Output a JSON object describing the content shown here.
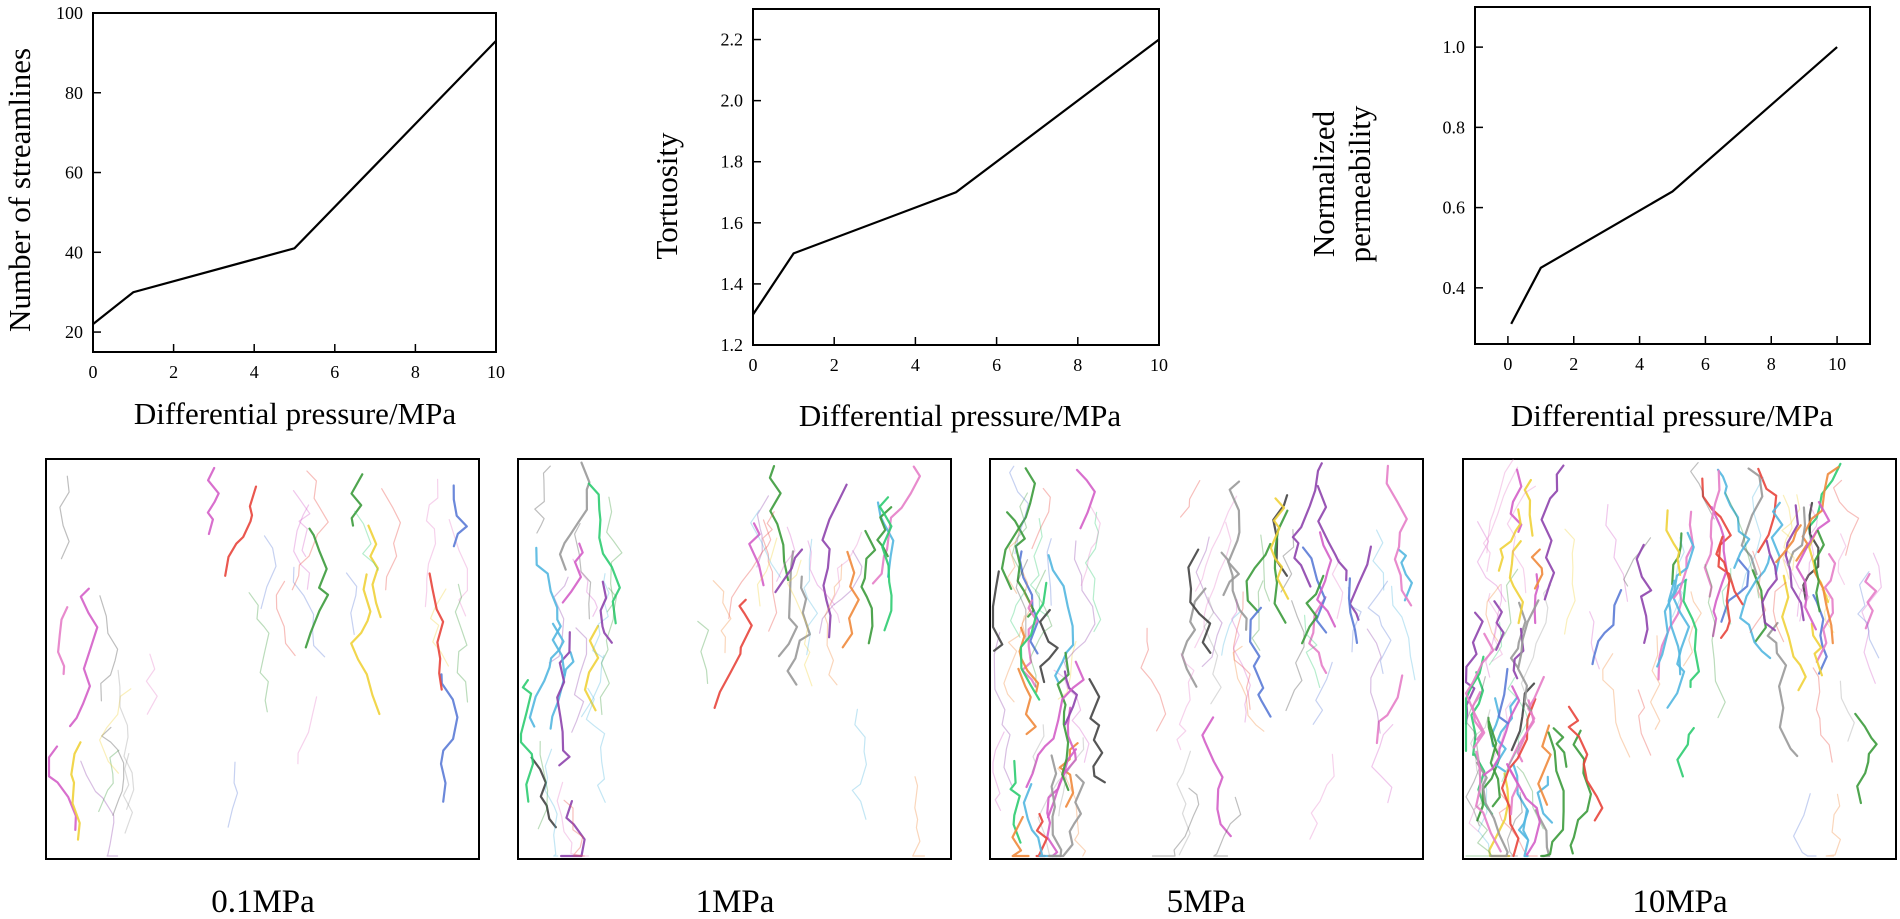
{
  "chart_data": [
    {
      "type": "line",
      "title": "",
      "xlabel": "Differential pressure/MPa",
      "ylabel": [
        "Number of streamlines"
      ],
      "x": [
        0,
        1,
        5,
        10
      ],
      "values": [
        22,
        30,
        41,
        93
      ],
      "xlim": [
        0,
        10
      ],
      "ylim": [
        15,
        100
      ],
      "xticks": [
        0,
        2,
        4,
        6,
        8,
        10
      ],
      "xtick_labels": [
        "0",
        "2",
        "4",
        "6",
        "8",
        "10"
      ],
      "yticks": [
        20,
        40,
        60,
        80,
        100
      ],
      "ytick_labels": [
        "20",
        "40",
        "60",
        "80",
        "100"
      ],
      "grid": false,
      "color": "#000000"
    },
    {
      "type": "line",
      "title": "",
      "xlabel": "Differential pressure/MPa",
      "ylabel": [
        "Tortuosity"
      ],
      "x": [
        0,
        1,
        5,
        10
      ],
      "values": [
        1.3,
        1.5,
        1.7,
        2.2
      ],
      "xlim": [
        0,
        10
      ],
      "ylim": [
        1.2,
        2.3
      ],
      "xticks": [
        0,
        2,
        4,
        6,
        8,
        10
      ],
      "xtick_labels": [
        "0",
        "2",
        "4",
        "6",
        "8",
        "10"
      ],
      "yticks": [
        1.2,
        1.4,
        1.6,
        1.8,
        2.0,
        2.2
      ],
      "ytick_labels": [
        "1.2",
        "1.4",
        "1.6",
        "1.8",
        "2.0",
        "2.2"
      ],
      "grid": false,
      "color": "#000000"
    },
    {
      "type": "line",
      "title": "",
      "xlabel": "Differential pressure/MPa",
      "ylabel": [
        "Normalized",
        "permeability"
      ],
      "x": [
        0.1,
        1,
        5,
        10
      ],
      "values": [
        0.31,
        0.45,
        0.64,
        1.0
      ],
      "xlim": [
        -1,
        11
      ],
      "ylim": [
        0.26,
        1.1
      ],
      "xticks": [
        0,
        2,
        4,
        6,
        8,
        10
      ],
      "xtick_labels": [
        "0",
        "2",
        "4",
        "6",
        "8",
        "10"
      ],
      "yticks": [
        0.4,
        0.6,
        0.8,
        1.0
      ],
      "ytick_labels": [
        "0.4",
        "0.6",
        "0.8",
        "1.0"
      ],
      "grid": false,
      "color": "#000000"
    }
  ],
  "streamline_panels": [
    {
      "caption": "0.1MPa",
      "pressure_mpa": 0.1,
      "density": "low"
    },
    {
      "caption": "1MPa",
      "pressure_mpa": 1,
      "density": "low-medium"
    },
    {
      "caption": "5MPa",
      "pressure_mpa": 5,
      "density": "medium"
    },
    {
      "caption": "10MPa",
      "pressure_mpa": 10,
      "density": "high"
    }
  ],
  "streamline_colors": [
    "#e8453c",
    "#3c9b3c",
    "#5b7bd6",
    "#d45fc8",
    "#f0d23a",
    "#53b7e0",
    "#f08a3c",
    "#8e44ad",
    "#2ecc71",
    "#e67ec8",
    "#999999",
    "#444444"
  ]
}
